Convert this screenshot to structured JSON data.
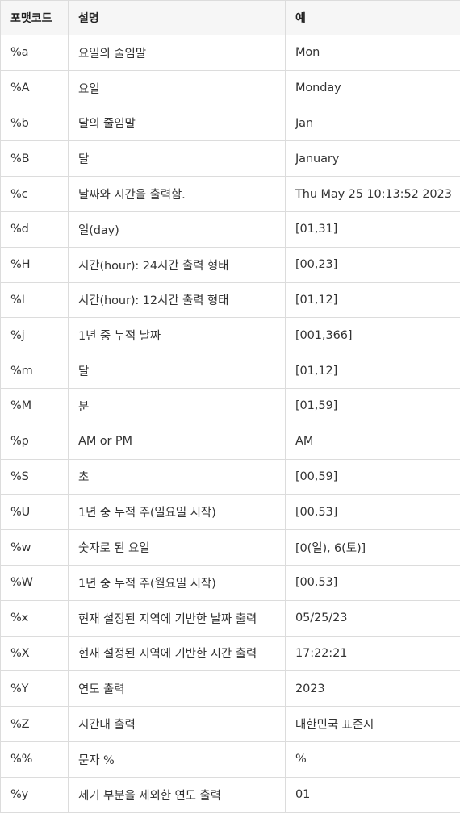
{
  "table": {
    "headers": [
      "포맷코드",
      "설명",
      "예"
    ],
    "rows": [
      {
        "code": "%a",
        "desc": "요일의 줄임말",
        "example": "Mon"
      },
      {
        "code": "%A",
        "desc": "요일",
        "example": "Monday"
      },
      {
        "code": "%b",
        "desc": "달의 줄임말",
        "example": "Jan"
      },
      {
        "code": "%B",
        "desc": "달",
        "example": "January"
      },
      {
        "code": "%c",
        "desc": "날짜와 시간을 출력함.",
        "example": "Thu May 25 10:13:52 2023"
      },
      {
        "code": "%d",
        "desc": "일(day)",
        "example": "[01,31]"
      },
      {
        "code": "%H",
        "desc": "시간(hour): 24시간 출력 형태",
        "example": "[00,23]"
      },
      {
        "code": "%I",
        "desc": "시간(hour): 12시간 출력 형태",
        "example": "[01,12]"
      },
      {
        "code": "%j",
        "desc": "1년 중 누적 날짜",
        "example": "[001,366]"
      },
      {
        "code": "%m",
        "desc": "달",
        "example": "[01,12]"
      },
      {
        "code": "%M",
        "desc": "분",
        "example": "[01,59]"
      },
      {
        "code": "%p",
        "desc": "AM or PM",
        "example": "AM"
      },
      {
        "code": "%S",
        "desc": "초",
        "example": "[00,59]"
      },
      {
        "code": "%U",
        "desc": "1년 중 누적 주(일요일 시작)",
        "example": "[00,53]"
      },
      {
        "code": "%w",
        "desc": "숫자로 된 요일",
        "example": "[0(일), 6(토)]"
      },
      {
        "code": "%W",
        "desc": "1년 중 누적 주(월요일 시작)",
        "example": "[00,53]"
      },
      {
        "code": "%x",
        "desc": "현재 설정된 지역에 기반한 날짜 출력",
        "example": "05/25/23"
      },
      {
        "code": "%X",
        "desc": "현재 설정된 지역에 기반한 시간 출력",
        "example": "17:22:21"
      },
      {
        "code": "%Y",
        "desc": "연도 출력",
        "example": "2023"
      },
      {
        "code": "%Z",
        "desc": "시간대 출력",
        "example": "대한민국 표준시"
      },
      {
        "code": "%%",
        "desc": "문자 %",
        "example": "%"
      },
      {
        "code": "%y",
        "desc": "세기 부분을 제외한 연도 출력",
        "example": "01"
      }
    ]
  }
}
